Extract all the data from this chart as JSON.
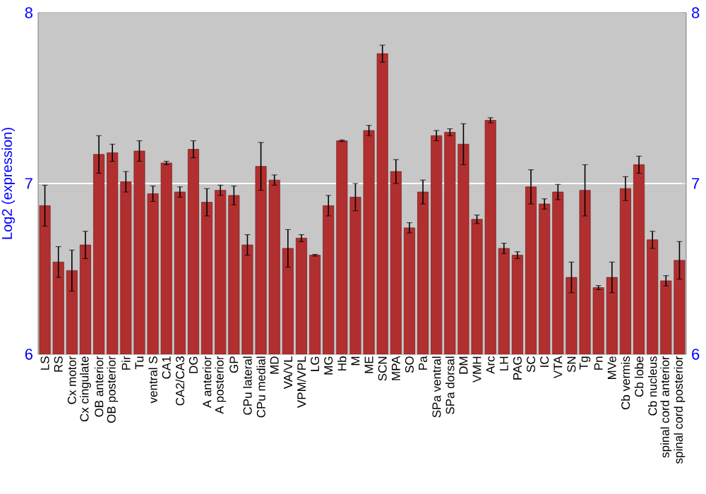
{
  "chart_data": {
    "type": "bar",
    "ylabel": "Log2 (expression)",
    "categories": [
      "LS",
      "RS",
      "Cx motor",
      "Cx cingulate",
      "OB anterior",
      "OB posterior",
      "Pir",
      "Tu",
      "ventral S",
      "CA1",
      "CA2/CA3",
      "DG",
      "A anterior",
      "A posterior",
      "GP",
      "CPu lateral",
      "CPu medial",
      "MD",
      "VA/VL",
      "VPM/VPL",
      "LG",
      "MG",
      "Hb",
      "M",
      "ME",
      "SCN",
      "MPA",
      "SO",
      "Pa",
      "SPa ventral",
      "SPa dorsal",
      "DM",
      "VMH",
      "Arc",
      "LH",
      "PAG",
      "SC",
      "IC",
      "VTA",
      "SN",
      "Tg",
      "Pn",
      "MVe",
      "Cb vermis",
      "Cb lobe",
      "Cb nucleus",
      "spinal cord anterior",
      "spinal cord posterior"
    ],
    "values": [
      6.87,
      6.54,
      6.49,
      6.64,
      7.17,
      7.18,
      7.01,
      7.19,
      6.94,
      7.12,
      6.95,
      7.2,
      6.89,
      6.96,
      6.93,
      6.64,
      7.1,
      7.02,
      6.62,
      6.68,
      6.58,
      6.87,
      7.25,
      6.92,
      7.31,
      7.76,
      7.07,
      6.74,
      6.95,
      7.28,
      7.3,
      7.23,
      6.79,
      7.37,
      6.62,
      6.58,
      6.98,
      6.88,
      6.95,
      6.45,
      6.96,
      6.39,
      6.45,
      6.97,
      7.11,
      6.67,
      6.43,
      6.55
    ],
    "errors": [
      0.12,
      0.09,
      0.12,
      0.08,
      0.11,
      0.05,
      0.06,
      0.06,
      0.045,
      0.01,
      0.03,
      0.05,
      0.08,
      0.03,
      0.055,
      0.06,
      0.14,
      0.03,
      0.11,
      0.02,
      0.005,
      0.06,
      0.005,
      0.08,
      0.03,
      0.05,
      0.07,
      0.03,
      0.07,
      0.03,
      0.02,
      0.12,
      0.025,
      0.015,
      0.03,
      0.02,
      0.1,
      0.03,
      0.045,
      0.09,
      0.15,
      0.012,
      0.09,
      0.07,
      0.05,
      0.05,
      0.03,
      0.11
    ],
    "color": "#b22f2f",
    "ylim": [
      6,
      8
    ],
    "yticks": [
      6,
      7,
      8
    ],
    "y2lim": [
      6,
      8
    ],
    "y2ticks": [
      6,
      7,
      8
    ],
    "grid": "y"
  }
}
